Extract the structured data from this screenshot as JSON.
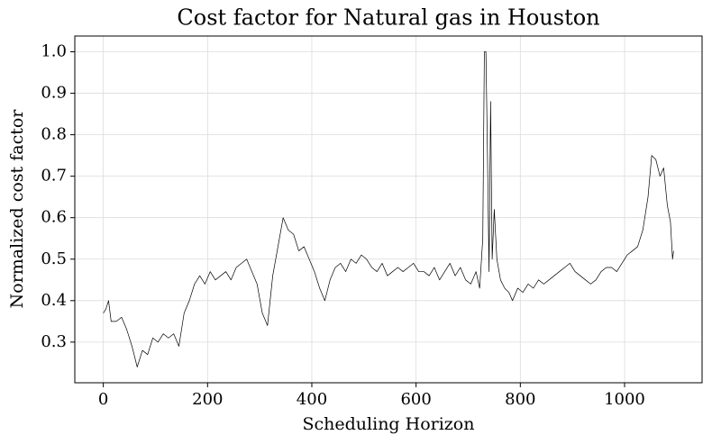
{
  "chart_data": {
    "type": "line",
    "title": "Cost factor for Natural gas in Houston",
    "x_label": "Scheduling Horizon",
    "y_label": "Normalized cost factor",
    "x": [
      0,
      5,
      10,
      15,
      25,
      35,
      45,
      55,
      65,
      75,
      85,
      95,
      105,
      115,
      125,
      135,
      145,
      155,
      165,
      175,
      185,
      195,
      205,
      215,
      225,
      235,
      245,
      255,
      265,
      275,
      285,
      295,
      305,
      315,
      325,
      335,
      345,
      355,
      365,
      375,
      385,
      395,
      405,
      415,
      425,
      435,
      445,
      455,
      465,
      475,
      485,
      495,
      505,
      515,
      525,
      535,
      545,
      555,
      565,
      575,
      585,
      595,
      605,
      615,
      625,
      635,
      645,
      655,
      665,
      675,
      685,
      695,
      705,
      715,
      722,
      728,
      731,
      734,
      737,
      740,
      743,
      746,
      750,
      755,
      762,
      770,
      778,
      785,
      795,
      805,
      815,
      825,
      835,
      845,
      855,
      865,
      875,
      885,
      895,
      905,
      915,
      925,
      935,
      945,
      955,
      965,
      975,
      985,
      995,
      1005,
      1015,
      1025,
      1035,
      1045,
      1052,
      1060,
      1068,
      1075,
      1082,
      1088,
      1092,
      1094
    ],
    "series": [
      {
        "name": "Natural gas",
        "color": "#000000",
        "values": [
          0.37,
          0.38,
          0.4,
          0.35,
          0.35,
          0.36,
          0.33,
          0.29,
          0.24,
          0.28,
          0.27,
          0.31,
          0.3,
          0.32,
          0.31,
          0.32,
          0.29,
          0.37,
          0.4,
          0.44,
          0.46,
          0.44,
          0.47,
          0.45,
          0.46,
          0.47,
          0.45,
          0.48,
          0.49,
          0.5,
          0.47,
          0.44,
          0.37,
          0.34,
          0.46,
          0.53,
          0.6,
          0.57,
          0.56,
          0.52,
          0.53,
          0.5,
          0.47,
          0.43,
          0.4,
          0.45,
          0.48,
          0.49,
          0.47,
          0.5,
          0.49,
          0.51,
          0.5,
          0.48,
          0.47,
          0.49,
          0.46,
          0.47,
          0.48,
          0.47,
          0.48,
          0.49,
          0.47,
          0.47,
          0.46,
          0.48,
          0.45,
          0.47,
          0.49,
          0.46,
          0.48,
          0.45,
          0.44,
          0.47,
          0.43,
          0.55,
          1.0,
          1.0,
          0.75,
          0.47,
          0.88,
          0.5,
          0.62,
          0.5,
          0.45,
          0.43,
          0.42,
          0.4,
          0.43,
          0.42,
          0.44,
          0.43,
          0.45,
          0.44,
          0.45,
          0.46,
          0.47,
          0.48,
          0.49,
          0.47,
          0.46,
          0.45,
          0.44,
          0.45,
          0.47,
          0.48,
          0.48,
          0.47,
          0.49,
          0.51,
          0.52,
          0.53,
          0.57,
          0.65,
          0.75,
          0.74,
          0.7,
          0.72,
          0.63,
          0.59,
          0.5,
          0.52
        ]
      }
    ],
    "xlim": [
      -54.7,
      1148.7
    ],
    "ylim": [
      0.202,
      1.038
    ],
    "xticks": [
      0,
      200,
      400,
      600,
      800,
      1000
    ],
    "yticks": [
      0.3,
      0.4,
      0.5,
      0.6,
      0.7,
      0.8,
      0.9,
      {
        "value": 1,
        "label": "1.0"
      }
    ],
    "grid": true
  }
}
